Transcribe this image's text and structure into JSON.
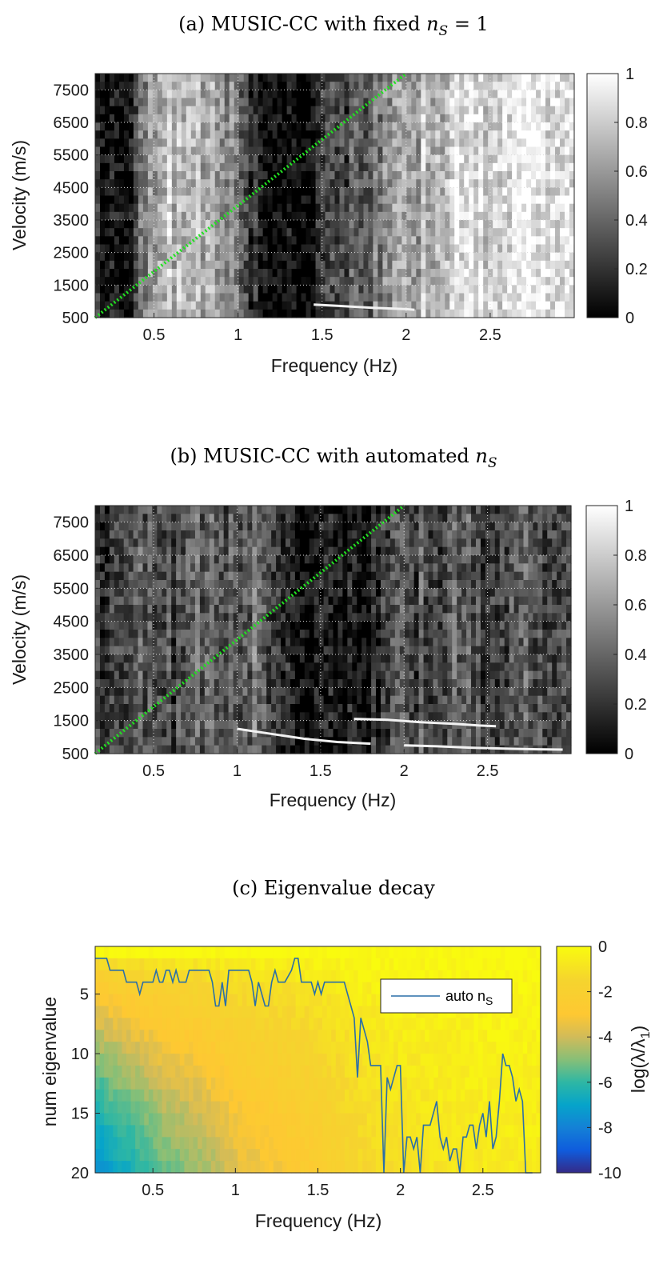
{
  "chart_data": [
    {
      "panel": "a",
      "type": "heatmap",
      "title_prefix": "(a) MUSIC-CC with fixed ",
      "title_math": "n",
      "title_math_sub": "S",
      "title_suffix": " = 1",
      "xlabel": "Frequency (Hz)",
      "ylabel": "Velocity (m/s)",
      "xlim": [
        0.15,
        3.0
      ],
      "ylim": [
        500,
        8000
      ],
      "xticks": [
        0.5,
        1,
        1.5,
        2,
        2.5
      ],
      "xtick_labels": [
        "0.5",
        "1",
        "1.5",
        "2",
        "2.5"
      ],
      "yticks": [
        500,
        1500,
        2500,
        3500,
        4500,
        5500,
        6500,
        7500
      ],
      "ytick_labels": [
        "500",
        "1500",
        "2500",
        "3500",
        "4500",
        "5500",
        "6500",
        "7500"
      ],
      "grid": true,
      "colormap": "gray",
      "clim": [
        0,
        1
      ],
      "colorbar_ticks": [
        0,
        0.2,
        0.4,
        0.6,
        0.8,
        1
      ],
      "colorbar_tick_labels": [
        "0",
        "0.2",
        "0.4",
        "0.6",
        "0.8",
        "1"
      ],
      "reference_line": {
        "color": "#22e022",
        "style": "dotted",
        "x": [
          0.15,
          2.0
        ],
        "y": [
          500,
          8000
        ]
      },
      "mode_curves": [
        {
          "x": [
            1.45,
            1.6,
            1.8,
            2.0,
            2.05
          ],
          "y": [
            900,
            860,
            800,
            760,
            740
          ]
        }
      ],
      "column_profile": {
        "x": [
          0.15,
          0.3,
          0.35,
          0.45,
          0.6,
          0.8,
          0.9,
          1.0,
          1.05,
          1.15,
          1.4,
          1.5,
          1.7,
          1.85,
          2.0,
          2.1,
          2.3,
          2.6,
          2.9,
          3.0
        ],
        "level": [
          0.1,
          0.15,
          0.1,
          0.5,
          0.75,
          0.7,
          0.6,
          0.45,
          0.3,
          0.05,
          0.05,
          0.2,
          0.35,
          0.5,
          0.55,
          0.7,
          0.85,
          0.9,
          0.95,
          0.9
        ]
      }
    },
    {
      "panel": "b",
      "type": "heatmap",
      "title_prefix": "(b) MUSIC-CC with automated ",
      "title_math": "n",
      "title_math_sub": "S",
      "title_suffix": "",
      "xlabel": "Frequency (Hz)",
      "ylabel": "Velocity (m/s)",
      "xlim": [
        0.15,
        3.0
      ],
      "ylim": [
        500,
        8000
      ],
      "xticks": [
        0.5,
        1,
        1.5,
        2,
        2.5
      ],
      "xtick_labels": [
        "0.5",
        "1",
        "1.5",
        "2",
        "2.5"
      ],
      "yticks": [
        500,
        1500,
        2500,
        3500,
        4500,
        5500,
        6500,
        7500
      ],
      "ytick_labels": [
        "500",
        "1500",
        "2500",
        "3500",
        "4500",
        "5500",
        "6500",
        "7500"
      ],
      "grid": true,
      "colormap": "gray",
      "clim": [
        0,
        1
      ],
      "colorbar_ticks": [
        0,
        0.2,
        0.4,
        0.6,
        0.8,
        1
      ],
      "colorbar_tick_labels": [
        "0",
        "0.2",
        "0.4",
        "0.6",
        "0.8",
        "1"
      ],
      "reference_line": {
        "color": "#22e022",
        "style": "dotted",
        "x": [
          0.15,
          2.0
        ],
        "y": [
          500,
          8000
        ]
      },
      "mode_curves": [
        {
          "x": [
            1.0,
            1.2,
            1.4,
            1.6,
            1.8
          ],
          "y": [
            1250,
            1100,
            950,
            850,
            800
          ]
        },
        {
          "x": [
            1.7,
            1.9,
            2.1,
            2.3,
            2.45,
            2.55
          ],
          "y": [
            1550,
            1520,
            1450,
            1400,
            1350,
            1330
          ]
        },
        {
          "x": [
            2.0,
            2.2,
            2.4,
            2.6,
            2.8,
            2.95
          ],
          "y": [
            750,
            720,
            680,
            650,
            630,
            620
          ]
        }
      ],
      "column_profile": {
        "x": [
          0.15,
          0.3,
          0.45,
          0.6,
          0.75,
          0.9,
          1.0,
          1.1,
          1.3,
          1.5,
          1.7,
          1.9,
          2.1,
          2.3,
          2.5,
          2.7,
          2.9,
          3.0
        ],
        "level": [
          0.15,
          0.35,
          0.3,
          0.25,
          0.4,
          0.35,
          0.3,
          0.45,
          0.15,
          0.08,
          0.08,
          0.2,
          0.3,
          0.35,
          0.3,
          0.3,
          0.35,
          0.3
        ]
      }
    },
    {
      "panel": "c",
      "type": "heatmap",
      "title_prefix": "(c) Eigenvalue decay",
      "title_math": "",
      "title_math_sub": "",
      "title_suffix": "",
      "xlabel": "Frequency (Hz)",
      "ylabel": "num eigenvalue",
      "xlim": [
        0.15,
        2.85
      ],
      "ylim": [
        1,
        20
      ],
      "y_reversed": true,
      "xticks": [
        0.5,
        1,
        1.5,
        2,
        2.5
      ],
      "xtick_labels": [
        "0.5",
        "1",
        "1.5",
        "2",
        "2.5"
      ],
      "yticks": [
        5,
        10,
        15,
        20
      ],
      "ytick_labels": [
        "5",
        "10",
        "15",
        "20"
      ],
      "grid": false,
      "colormap": "parula",
      "clim": [
        -10,
        0
      ],
      "colorbar_label": "log(λ/λ",
      "colorbar_label_sub": "1",
      "colorbar_label_end": ")",
      "colorbar_ticks": [
        -10,
        -8,
        -6,
        -4,
        -2,
        0
      ],
      "colorbar_tick_labels": [
        "-10",
        "-8",
        "-6",
        "-4",
        "-2",
        "0"
      ],
      "legend": {
        "label": "auto n",
        "label_sub": "S",
        "location": "top-right"
      },
      "series": [
        {
          "name": "auto nS",
          "color": "#2a6fa8",
          "x": [
            0.15,
            0.22,
            0.24,
            0.32,
            0.34,
            0.4,
            0.42,
            0.44,
            0.46,
            0.5,
            0.52,
            0.54,
            0.56,
            0.58,
            0.6,
            0.62,
            0.64,
            0.66,
            0.68,
            0.7,
            0.72,
            0.84,
            0.86,
            0.88,
            0.9,
            0.92,
            0.94,
            0.96,
            0.98,
            1.0,
            1.08,
            1.1,
            1.12,
            1.14,
            1.18,
            1.2,
            1.22,
            1.24,
            1.26,
            1.28,
            1.3,
            1.34,
            1.36,
            1.38,
            1.4,
            1.42,
            1.44,
            1.46,
            1.48,
            1.5,
            1.52,
            1.54,
            1.56,
            1.58,
            1.6,
            1.62,
            1.64,
            1.66,
            1.68,
            1.7,
            1.72,
            1.74,
            1.76,
            1.78,
            1.8,
            1.82,
            1.84,
            1.86,
            1.88,
            1.9,
            1.92,
            1.94,
            1.96,
            1.98,
            2.0,
            2.02,
            2.04,
            2.06,
            2.08,
            2.1,
            2.12,
            2.14,
            2.16,
            2.18,
            2.2,
            2.22,
            2.24,
            2.26,
            2.28,
            2.3,
            2.32,
            2.34,
            2.36,
            2.38,
            2.4,
            2.42,
            2.44,
            2.46,
            2.48,
            2.5,
            2.52,
            2.54,
            2.56,
            2.58,
            2.6,
            2.62,
            2.64,
            2.66,
            2.68,
            2.7,
            2.72,
            2.74,
            2.76,
            2.78,
            2.8
          ],
          "y": [
            2,
            2,
            3,
            3,
            4,
            4,
            5,
            4,
            4,
            4,
            3,
            4,
            4,
            3,
            3,
            4,
            3,
            4,
            4,
            4,
            3,
            3,
            4,
            6,
            6,
            4,
            6,
            3,
            3,
            3,
            3,
            4,
            6,
            4,
            6,
            6,
            4,
            3,
            4,
            4,
            4,
            3,
            2,
            2,
            4,
            4,
            4,
            4,
            5,
            4,
            5,
            4,
            4,
            4,
            4,
            4,
            4,
            4,
            5,
            6,
            7,
            12,
            7,
            8,
            9,
            11,
            11,
            11,
            11,
            20,
            12,
            13,
            12,
            11,
            11,
            20,
            17,
            17,
            18,
            17,
            20,
            16,
            16,
            16,
            15,
            14,
            17,
            18,
            17,
            19,
            18,
            18,
            20,
            17,
            17,
            16,
            16,
            18,
            16,
            15,
            17,
            14,
            18,
            17,
            14,
            10,
            11,
            11,
            12,
            14,
            13,
            14,
            20,
            20,
            20
          ]
        }
      ],
      "column_profile": {
        "x": [
          0.15,
          0.3,
          0.45,
          0.6,
          0.75,
          0.9,
          1.0,
          1.1,
          1.3,
          1.5,
          1.7,
          1.9,
          2.1,
          2.3,
          2.5,
          2.7,
          2.85
        ],
        "level": [
          -8.5,
          -7.5,
          -6.8,
          -6.0,
          -5.6,
          -5.0,
          -4.5,
          -4.2,
          -3.8,
          -3.2,
          -2.4,
          -2.0,
          -1.8,
          -1.6,
          -1.5,
          -1.4,
          -1.4
        ]
      }
    }
  ]
}
